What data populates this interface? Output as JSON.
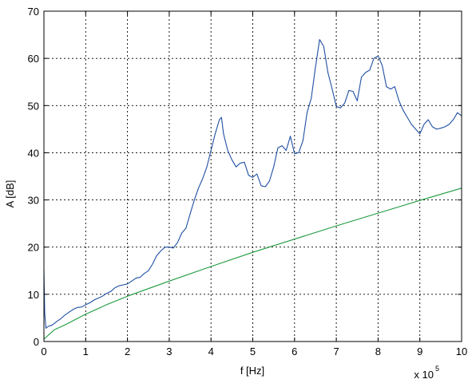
{
  "chart_data": {
    "type": "line",
    "title": "",
    "xlabel": "f [Hz]",
    "ylabel": "A [dB]",
    "x_multiplier_label": "x 10",
    "x_multiplier_exponent": "5",
    "xlim": [
      0,
      10
    ],
    "ylim": [
      0,
      70
    ],
    "x_ticks": [
      0,
      1,
      2,
      3,
      4,
      5,
      6,
      7,
      8,
      9,
      10
    ],
    "y_ticks": [
      0,
      10,
      20,
      30,
      40,
      50,
      60,
      70
    ],
    "grid": true,
    "legend": "none",
    "series": [
      {
        "color": "#1f4fa3",
        "x": [
          0,
          0.02,
          0.05,
          0.1,
          0.2,
          0.3,
          0.4,
          0.5,
          0.6,
          0.7,
          0.8,
          0.9,
          1.0,
          1.1,
          1.2,
          1.3,
          1.4,
          1.5,
          1.6,
          1.7,
          1.8,
          1.9,
          2.0,
          2.1,
          2.2,
          2.3,
          2.4,
          2.5,
          2.6,
          2.7,
          2.8,
          2.9,
          3.0,
          3.1,
          3.2,
          3.3,
          3.4,
          3.5,
          3.6,
          3.7,
          3.8,
          3.9,
          4.0,
          4.1,
          4.2,
          4.25,
          4.3,
          4.4,
          4.5,
          4.6,
          4.7,
          4.8,
          4.9,
          5.0,
          5.1,
          5.2,
          5.3,
          5.4,
          5.5,
          5.6,
          5.7,
          5.8,
          5.9,
          6.0,
          6.1,
          6.2,
          6.3,
          6.4,
          6.5,
          6.6,
          6.7,
          6.8,
          6.9,
          7.0,
          7.1,
          7.2,
          7.3,
          7.4,
          7.5,
          7.6,
          7.7,
          7.8,
          7.9,
          8.0,
          8.1,
          8.2,
          8.3,
          8.4,
          8.5,
          8.6,
          8.7,
          8.8,
          8.9,
          9.0,
          9.1,
          9.2,
          9.3,
          9.4,
          9.5,
          9.6,
          9.7,
          9.8,
          9.9,
          10.0
        ],
        "y": [
          15,
          6,
          2.8,
          3.2,
          3.5,
          4.2,
          4.8,
          5.6,
          6.2,
          6.8,
          7.2,
          7.3,
          7.8,
          8.2,
          8.8,
          9.2,
          9.6,
          10.2,
          10.6,
          11.4,
          11.8,
          12.0,
          12.2,
          12.8,
          13.4,
          13.6,
          14.4,
          15.0,
          16.4,
          18.2,
          19.2,
          20.0,
          20.0,
          19.8,
          21.0,
          23.0,
          24.0,
          27.0,
          30.0,
          32.5,
          34.5,
          37.0,
          40.5,
          44.0,
          47.0,
          47.5,
          44.0,
          40.5,
          38.5,
          37.0,
          37.8,
          38.0,
          35.2,
          34.8,
          35.5,
          33.0,
          32.8,
          34.0,
          37.0,
          41.0,
          41.5,
          40.5,
          43.5,
          39.8,
          40.0,
          42.5,
          48.5,
          51.5,
          58.0,
          64.0,
          62.5,
          57.0,
          53.5,
          49.8,
          49.5,
          50.5,
          53.2,
          53.0,
          51.0,
          56.0,
          57.0,
          57.5,
          60.0,
          60.5,
          58.5,
          54.0,
          53.5,
          54.0,
          51.0,
          49.0,
          47.5,
          46.0,
          45.0,
          44.0,
          46.0,
          47.0,
          45.5,
          45.0,
          45.2,
          45.5,
          46.0,
          47.0,
          48.5,
          47.8
        ]
      },
      {
        "color": "#1e9b3e",
        "x": [
          0,
          0.25,
          0.5,
          1,
          1.5,
          2,
          3,
          4,
          5,
          6,
          7,
          8,
          9,
          10
        ],
        "y": [
          0.5,
          2.5,
          3.5,
          5.8,
          7.8,
          9.6,
          12.8,
          15.9,
          18.9,
          21.7,
          24.5,
          27.2,
          29.9,
          32.5
        ]
      }
    ]
  }
}
